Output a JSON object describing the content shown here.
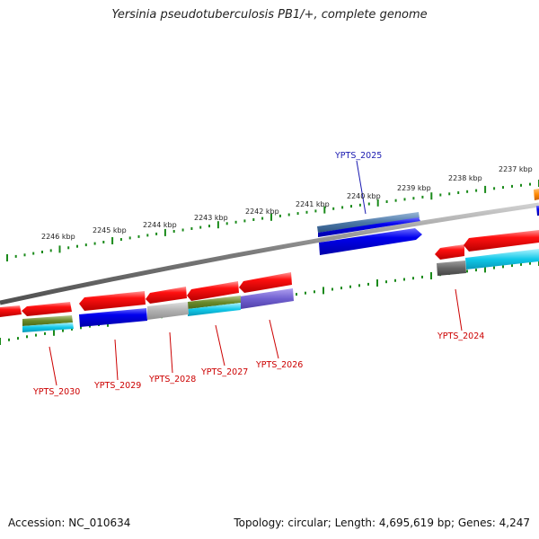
{
  "title": "Yersinia pseudotuberculosis PB1/+, complete genome",
  "footer": {
    "accession": "Accession: NC_010634",
    "summary": "Topology: circular; Length: 4,695,619 bp; Genes: 4,247"
  },
  "tick_labels": [
    "2237 kbp",
    "2238 kbp",
    "2239 kbp",
    "2240 kbp",
    "2241 kbp",
    "2242 kbp",
    "2243 kbp",
    "2244 kbp",
    "2245 kbp",
    "2246 kbp"
  ],
  "gene_labels": [
    {
      "text": "YPTS_2025",
      "color": "#1a1ab0"
    },
    {
      "text": "YPTS_2024",
      "color": "#cc0000"
    },
    {
      "text": "YPTS_2026",
      "color": "#cc0000"
    },
    {
      "text": "YPTS_2027",
      "color": "#cc0000"
    },
    {
      "text": "YPTS_2028",
      "color": "#cc0000"
    },
    {
      "text": "YPTS_2029",
      "color": "#cc0000"
    },
    {
      "text": "YPTS_2030",
      "color": "#cc0000"
    }
  ],
  "colors": {
    "forward_gene": "#0000ee",
    "reverse_gene": "#ee0000",
    "ticks": "#1a8a1a",
    "backbone": "#808080"
  }
}
